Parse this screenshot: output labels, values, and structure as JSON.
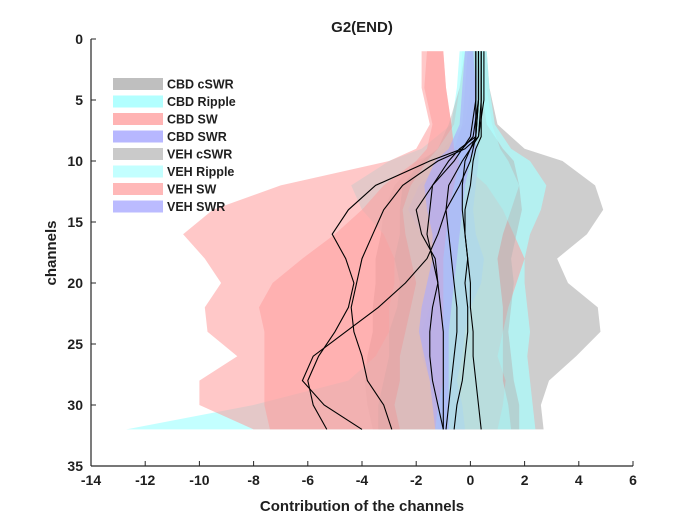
{
  "chart_data": {
    "type": "area",
    "title": "G2(END)",
    "xlabel": "Contribution of the channels",
    "ylabel": "channels",
    "xlim": [
      -14,
      6
    ],
    "ylim": [
      0,
      35
    ],
    "y_reversed": true,
    "grid": false,
    "legend_position": "top-left",
    "xticks": [
      -14,
      -12,
      -10,
      -8,
      -6,
      -4,
      -2,
      0,
      2,
      4,
      6
    ],
    "yticks": [
      0,
      5,
      10,
      15,
      20,
      25,
      30,
      35
    ],
    "bands": [
      {
        "name": "CBD cSWR",
        "color": "#b4b4b4",
        "opacity": 0.65,
        "y": [
          1,
          4,
          7,
          9,
          10,
          12,
          14,
          16,
          18,
          20,
          22,
          24,
          26,
          28,
          30,
          32
        ],
        "lower": [
          0.0,
          0.0,
          -0.2,
          -1.0,
          -2.0,
          -2.8,
          -3.2,
          -3.3,
          -3.5,
          -3.5,
          -3.6,
          -3.6,
          -3.8,
          -3.9,
          -3.8,
          -3.6
        ],
        "upper": [
          0.6,
          0.7,
          1.0,
          2.0,
          3.4,
          4.6,
          4.9,
          4.3,
          3.2,
          3.6,
          4.7,
          4.8,
          3.9,
          2.9,
          2.6,
          2.7
        ]
      },
      {
        "name": "CBD Ripple",
        "color": "#aaffff",
        "opacity": 0.7,
        "y": [
          1,
          4,
          7,
          9,
          10,
          12,
          14,
          16,
          18,
          20,
          22,
          24,
          26,
          28,
          30,
          32
        ],
        "lower": [
          -0.4,
          -0.5,
          -0.7,
          -1.8,
          -3.0,
          -4.4,
          -4.0,
          -3.2,
          -2.8,
          -2.8,
          -3.0,
          -3.0,
          -3.5,
          -4.5,
          -8.0,
          -12.7
        ],
        "upper": [
          0.6,
          0.7,
          0.9,
          1.5,
          2.2,
          2.8,
          2.6,
          2.2,
          2.0,
          2.0,
          2.1,
          2.2,
          2.1,
          2.2,
          2.3,
          2.4
        ]
      },
      {
        "name": "CBD SW",
        "color": "#ff9a9a",
        "opacity": 0.55,
        "y": [
          1,
          4,
          7,
          9,
          10,
          12,
          14,
          16,
          18,
          20,
          22,
          24,
          26,
          28,
          30,
          32
        ],
        "lower": [
          -1.8,
          -1.8,
          -1.5,
          -2.0,
          -3.0,
          -7.0,
          -9.5,
          -10.6,
          -9.8,
          -9.2,
          -9.8,
          -9.7,
          -8.6,
          -10.0,
          -10.0,
          -8.0
        ],
        "upper": [
          -1.0,
          -0.9,
          -0.7,
          -0.6,
          -0.4,
          0.6,
          1.2,
          1.6,
          2.0,
          1.7,
          1.4,
          1.2,
          1.0,
          1.3,
          1.2,
          1.0
        ]
      },
      {
        "name": "CBD SWR",
        "color": "#aaaaff",
        "opacity": 0.65,
        "y": [
          1,
          4,
          7,
          9,
          10,
          12,
          14,
          16,
          18,
          20,
          22,
          24,
          26,
          28,
          30,
          32
        ],
        "lower": [
          -0.1,
          -0.2,
          -0.3,
          -0.6,
          -1.0,
          -1.9,
          -2.3,
          -1.8,
          -1.4,
          -1.2,
          -1.5,
          -1.8,
          -1.8,
          -1.5,
          -1.3,
          -1.2
        ],
        "upper": [
          0.2,
          0.3,
          0.3,
          0.3,
          0.3,
          0.2,
          0.1,
          0.2,
          0.5,
          0.4,
          0.0,
          -0.2,
          -0.3,
          -0.5,
          -0.3,
          -0.2
        ]
      },
      {
        "name": "VEH cSWR",
        "color": "#b4b4b4",
        "opacity": 0.5,
        "y": [
          1,
          4,
          7,
          9,
          10,
          12,
          14,
          16,
          18,
          20,
          22,
          24,
          26,
          28,
          30,
          32
        ],
        "lower": [
          -0.2,
          -0.4,
          -0.8,
          -1.2,
          -1.8,
          -2.5,
          -2.6,
          -2.6,
          -2.8,
          -2.6,
          -2.7,
          -3.0,
          -3.0,
          -3.2,
          -3.4,
          -3.4
        ],
        "upper": [
          0.3,
          0.4,
          0.6,
          1.2,
          1.6,
          1.8,
          1.9,
          1.7,
          1.5,
          1.6,
          1.5,
          1.4,
          1.5,
          1.6,
          1.8,
          1.8
        ]
      },
      {
        "name": "VEH Ripple",
        "color": "#aaffff",
        "opacity": 0.5,
        "y": [
          1,
          4,
          7,
          9,
          10,
          12,
          14,
          16,
          18,
          20,
          22,
          24,
          26,
          28,
          30,
          32
        ],
        "lower": [
          -0.3,
          -0.4,
          -0.6,
          -1.2,
          -1.6,
          -2.2,
          -2.5,
          -2.4,
          -2.2,
          -2.0,
          -2.2,
          -2.4,
          -2.6,
          -2.6,
          -2.8,
          -2.6
        ],
        "upper": [
          0.5,
          0.6,
          0.8,
          1.1,
          1.4,
          1.8,
          1.5,
          1.2,
          1.0,
          1.1,
          1.2,
          1.2,
          1.2,
          1.2,
          1.4,
          1.5
        ]
      },
      {
        "name": "VEH SW",
        "color": "#ff9a9a",
        "opacity": 0.5,
        "y": [
          1,
          4,
          7,
          9,
          10,
          12,
          14,
          16,
          18,
          20,
          22,
          24,
          26,
          28,
          30,
          32
        ],
        "lower": [
          -1.6,
          -1.7,
          -1.4,
          -1.6,
          -2.0,
          -3.2,
          -4.0,
          -5.0,
          -6.2,
          -7.3,
          -7.8,
          -7.6,
          -7.6,
          -7.6,
          -7.6,
          -7.4
        ],
        "upper": [
          -1.0,
          -0.9,
          -0.7,
          -0.6,
          -0.4,
          -0.6,
          -0.8,
          -0.9,
          -1.0,
          -1.0,
          -1.0,
          -1.0,
          -1.0,
          -1.0,
          -1.2,
          -1.3
        ]
      },
      {
        "name": "VEH SWR",
        "color": "#aaaaff",
        "opacity": 0.6,
        "y": [
          1,
          4,
          7,
          9,
          10,
          12,
          14,
          16,
          18,
          20,
          22,
          24,
          26,
          28,
          30,
          32
        ],
        "lower": [
          -0.2,
          -0.3,
          -0.4,
          -0.8,
          -1.3,
          -1.7,
          -1.6,
          -1.4,
          -1.4,
          -1.6,
          -1.8,
          -1.9,
          -1.7,
          -1.5,
          -1.4,
          -1.3
        ],
        "upper": [
          0.1,
          0.2,
          0.2,
          0.2,
          0.0,
          -0.2,
          -0.3,
          -0.4,
          -0.5,
          -0.6,
          -0.7,
          -0.8,
          -0.8,
          -0.8,
          -0.8,
          -0.8
        ]
      }
    ],
    "lines": [
      {
        "color": "#000000",
        "y": [
          1,
          5,
          8,
          9,
          10,
          12,
          14,
          16,
          18,
          20,
          22,
          24,
          26,
          28,
          30,
          32
        ],
        "x": [
          0.3,
          0.3,
          0.1,
          -0.3,
          -1.5,
          -3.5,
          -4.5,
          -5.1,
          -4.6,
          -4.3,
          -4.5,
          -5.0,
          -5.6,
          -6.0,
          -5.8,
          -5.3
        ]
      },
      {
        "color": "#000000",
        "y": [
          1,
          5,
          8,
          9,
          10,
          12,
          14,
          16,
          18,
          20,
          22,
          24,
          26,
          28,
          30,
          32
        ],
        "x": [
          0.4,
          0.4,
          0.3,
          -0.2,
          -1.2,
          -2.5,
          -3.2,
          -3.6,
          -4.0,
          -4.2,
          -4.4,
          -4.3,
          -4.0,
          -3.8,
          -3.2,
          -2.9
        ]
      },
      {
        "color": "#000000",
        "y": [
          1,
          5,
          8,
          9,
          10,
          12,
          14,
          16,
          18,
          20,
          22,
          24,
          26,
          28,
          30,
          32
        ],
        "x": [
          0.2,
          0.2,
          0.0,
          -0.3,
          -0.6,
          -1.4,
          -2.0,
          -1.8,
          -1.3,
          -1.2,
          -1.4,
          -1.5,
          -1.5,
          -1.4,
          -1.2,
          -1.0
        ]
      },
      {
        "color": "#000000",
        "y": [
          1,
          5,
          8,
          9,
          10,
          12,
          14,
          16,
          18,
          20,
          22,
          24,
          26,
          28,
          30,
          32
        ],
        "x": [
          0.3,
          0.3,
          0.2,
          -0.4,
          -0.8,
          -1.4,
          -1.5,
          -1.6,
          -1.4,
          -1.2,
          -1.1,
          -1.0,
          -1.0,
          -1.0,
          -1.0,
          -1.0
        ]
      },
      {
        "color": "#000000",
        "y": [
          1,
          5,
          8,
          9,
          10,
          12,
          14,
          16,
          18,
          20,
          22,
          24,
          26,
          28,
          30,
          32
        ],
        "x": [
          0.5,
          0.5,
          0.3,
          0.0,
          -0.3,
          -0.8,
          -0.9,
          -0.8,
          -0.7,
          -0.6,
          -0.5,
          -0.5,
          -0.6,
          -0.7,
          -0.8,
          -0.9
        ]
      },
      {
        "color": "#000000",
        "y": [
          1,
          5,
          8,
          9,
          10,
          12,
          14,
          16,
          18,
          20,
          22,
          24,
          26,
          28,
          30,
          32
        ],
        "x": [
          0.3,
          0.3,
          0.2,
          0.0,
          -0.2,
          -0.3,
          -0.3,
          -0.2,
          -0.1,
          0.0,
          0.0,
          0.1,
          0.1,
          0.2,
          0.3,
          0.4
        ]
      },
      {
        "color": "#000000",
        "y": [
          1,
          5,
          8,
          9,
          10,
          12,
          14,
          16,
          18,
          20,
          22,
          24,
          26,
          28,
          30,
          32
        ],
        "x": [
          0.4,
          0.4,
          0.4,
          0.2,
          0.1,
          0.0,
          -0.2,
          -0.2,
          -0.1,
          -0.2,
          -0.1,
          -0.1,
          -0.2,
          -0.3,
          -0.5,
          -0.6
        ]
      },
      {
        "color": "#000000",
        "y": [
          1,
          5,
          8,
          9,
          10,
          12,
          14,
          16,
          18,
          20,
          22,
          24,
          26,
          28,
          30,
          32
        ],
        "x": [
          0.2,
          0.2,
          0.2,
          0.1,
          0.0,
          -0.4,
          -0.9,
          -1.2,
          -1.6,
          -2.4,
          -3.4,
          -4.6,
          -5.8,
          -6.2,
          -5.4,
          -4.0
        ]
      }
    ]
  }
}
